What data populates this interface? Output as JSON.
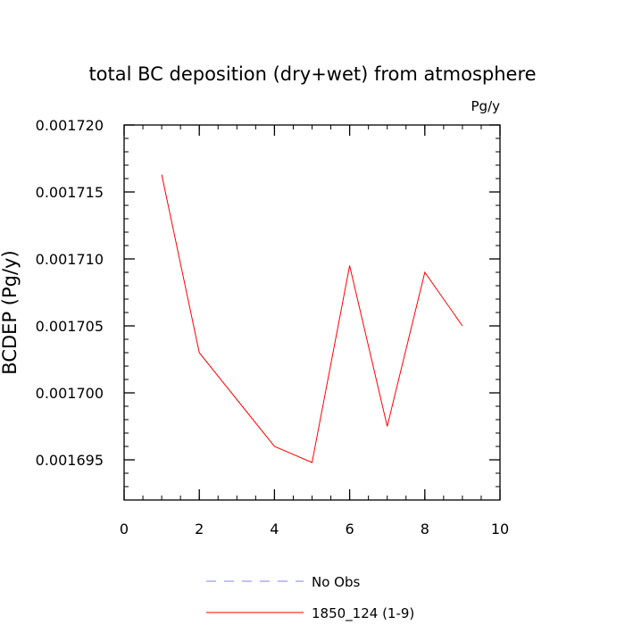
{
  "chart_data": {
    "type": "line",
    "title": "total BC deposition (dry+wet) from atmosphere",
    "units_label": "Pg/y",
    "xlabel": "",
    "ylabel": "BCDEP  (Pg/y)",
    "xlim": [
      0,
      10
    ],
    "ylim": [
      0.001692,
      0.00172
    ],
    "x_ticks": [
      0,
      2,
      4,
      6,
      8,
      10
    ],
    "x_tick_labels": [
      "0",
      "2",
      "4",
      "6",
      "8",
      "10"
    ],
    "y_ticks": [
      0.001695,
      0.0017,
      0.001705,
      0.00171,
      0.001715,
      0.00172
    ],
    "y_tick_labels": [
      "0.001695",
      "0.001700",
      "0.001705",
      "0.001710",
      "0.001715",
      "0.001720"
    ],
    "grid": false,
    "legend_position": "bottom",
    "series": [
      {
        "name": "1850_124 (1-9)",
        "color": "#ff0000",
        "dash": "solid",
        "x": [
          1,
          2,
          3,
          4,
          5,
          6,
          7,
          8,
          9
        ],
        "y": [
          0.0017163,
          0.001703,
          0.0016995,
          0.001696,
          0.0016948,
          0.0017095,
          0.0016975,
          0.001709,
          0.001705
        ]
      }
    ],
    "legend": [
      {
        "label": "No Obs",
        "color": "#8080ff",
        "dash": "dashed"
      },
      {
        "label": "1850_124 (1-9)",
        "color": "#ff0000",
        "dash": "solid"
      }
    ]
  }
}
